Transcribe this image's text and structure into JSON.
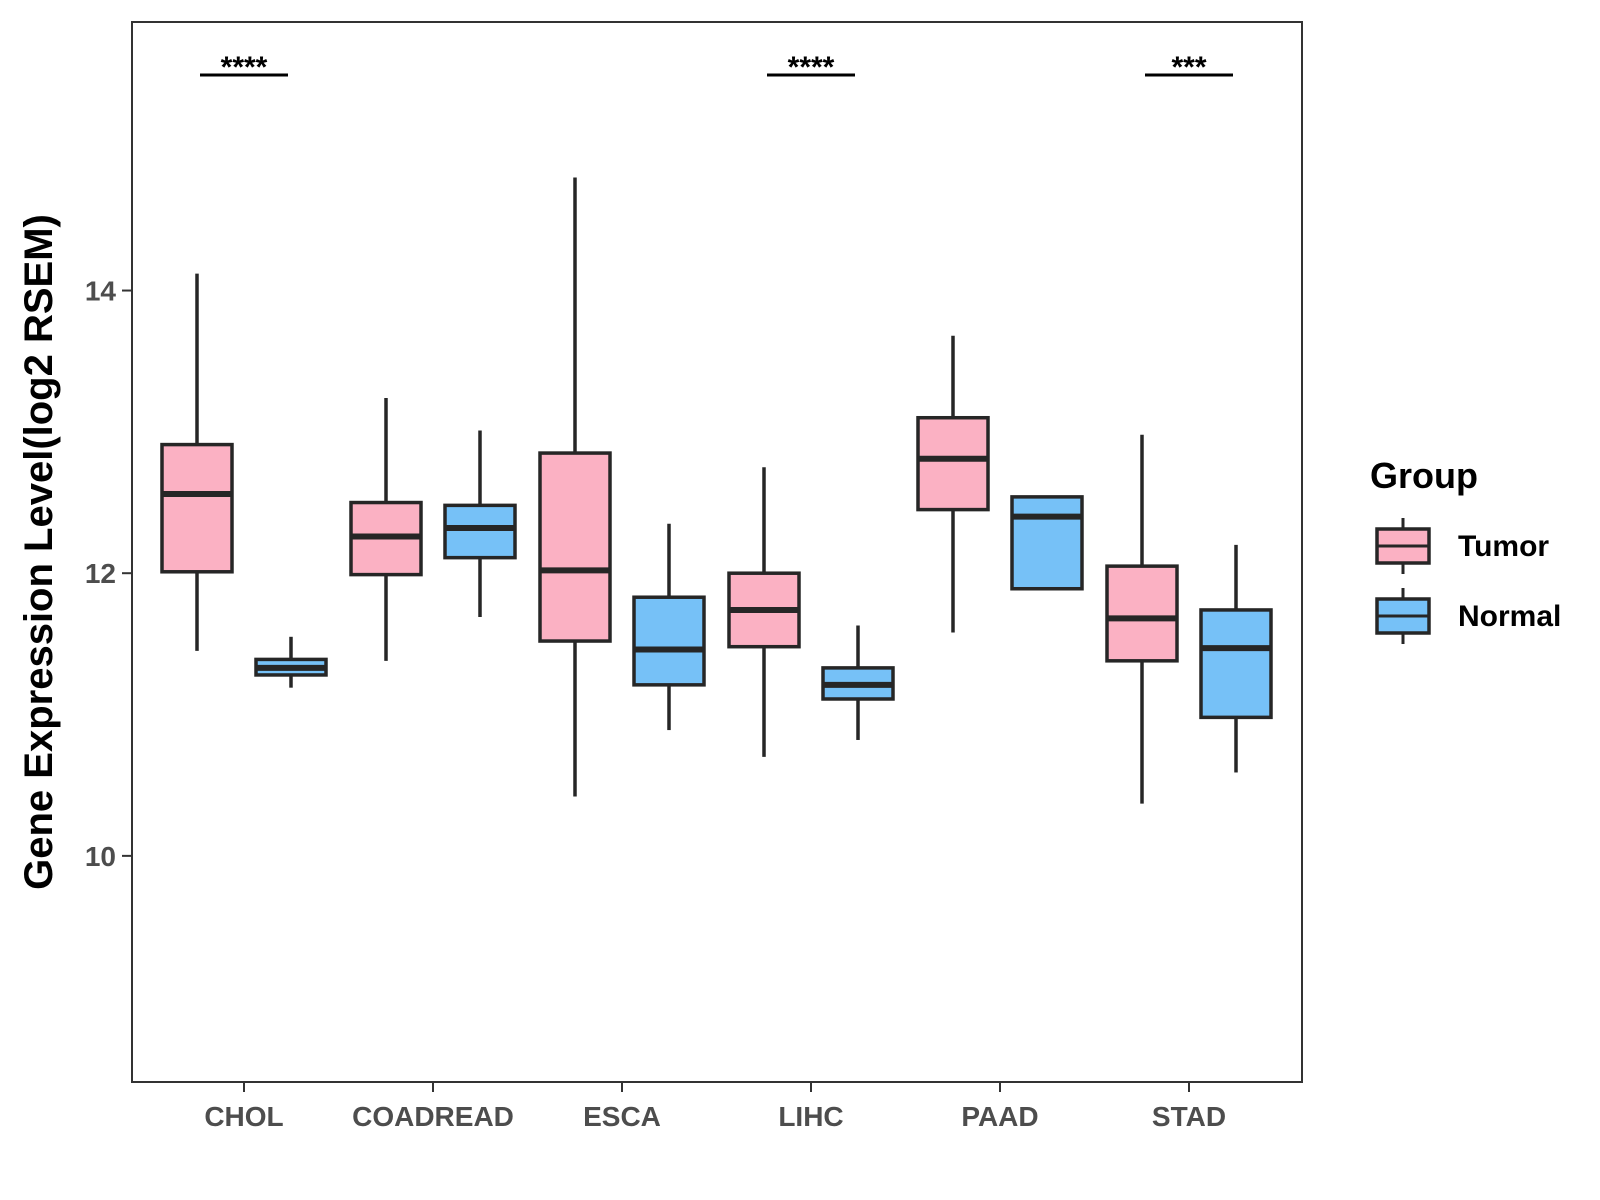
{
  "chart_data": {
    "type": "boxplot",
    "title": "",
    "xlabel": "",
    "ylabel": "Gene Expression Level(log2 RSEM)",
    "ylim": [
      8.4,
      15.9
    ],
    "yticks": [
      10,
      12,
      14
    ],
    "grid": false,
    "categories": [
      "CHOL",
      "COADREAD",
      "ESCA",
      "LIHC",
      "PAAD",
      "STAD"
    ],
    "series": [
      {
        "name": "Tumor",
        "color": "#fbb1c3",
        "boxes": [
          {
            "category": "CHOL",
            "min": 11.45,
            "q1": 12.01,
            "median": 12.56,
            "q3": 12.91,
            "max": 14.12
          },
          {
            "category": "COADREAD",
            "min": 11.38,
            "q1": 11.99,
            "median": 12.26,
            "q3": 12.5,
            "max": 13.24
          },
          {
            "category": "ESCA",
            "min": 10.42,
            "q1": 11.52,
            "median": 12.02,
            "q3": 12.85,
            "max": 14.8
          },
          {
            "category": "LIHC",
            "min": 10.7,
            "q1": 11.48,
            "median": 11.74,
            "q3": 12.0,
            "max": 12.75
          },
          {
            "category": "PAAD",
            "min": 11.58,
            "q1": 12.45,
            "median": 12.81,
            "q3": 13.1,
            "max": 13.68
          },
          {
            "category": "STAD",
            "min": 10.37,
            "q1": 11.38,
            "median": 11.68,
            "q3": 12.05,
            "max": 12.98
          }
        ]
      },
      {
        "name": "Normal",
        "color": "#76c1f7",
        "boxes": [
          {
            "category": "CHOL",
            "min": 11.19,
            "q1": 11.28,
            "median": 11.33,
            "q3": 11.39,
            "max": 11.55
          },
          {
            "category": "COADREAD",
            "min": 11.69,
            "q1": 12.11,
            "median": 12.32,
            "q3": 12.48,
            "max": 13.01
          },
          {
            "category": "ESCA",
            "min": 10.89,
            "q1": 11.21,
            "median": 11.46,
            "q3": 11.83,
            "max": 12.35
          },
          {
            "category": "LIHC",
            "min": 10.82,
            "q1": 11.11,
            "median": 11.21,
            "q3": 11.33,
            "max": 11.63
          },
          {
            "category": "PAAD",
            "min": 11.89,
            "q1": 11.89,
            "median": 12.4,
            "q3": 12.54,
            "max": 12.54
          },
          {
            "category": "STAD",
            "min": 10.59,
            "q1": 10.98,
            "median": 11.47,
            "q3": 11.74,
            "max": 12.2
          }
        ]
      }
    ],
    "significance": [
      {
        "category": "CHOL",
        "label": "****"
      },
      {
        "category": "LIHC",
        "label": "****"
      },
      {
        "category": "STAD",
        "label": "***"
      }
    ],
    "legend": {
      "title": "Group",
      "position": "right",
      "entries": [
        "Tumor",
        "Normal"
      ]
    }
  }
}
